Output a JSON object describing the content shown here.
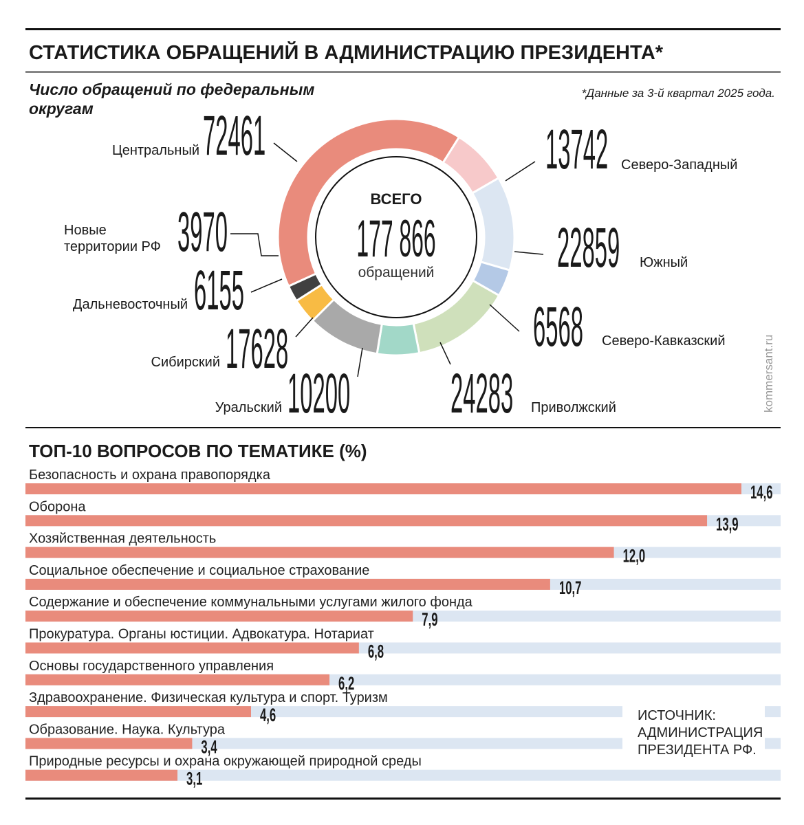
{
  "header": {
    "title": "СТАТИСТИКА ОБРАЩЕНИЙ В АДМИНИСТРАЦИЮ ПРЕЗИДЕНТА*",
    "note": "*Данные за 3-й квартал 2025 года.",
    "watermark": "kommersant.ru"
  },
  "chart_data": [
    {
      "type": "donut",
      "title": "Число обращений по федеральным округам",
      "center_top": "ВСЕГО",
      "center_total": "177 866",
      "center_bottom": "обращений",
      "categories": [
        "Центральный",
        "Северо-Западный",
        "Южный",
        "Северо-Кавказский",
        "Приволжский",
        "Уральский",
        "Сибирский",
        "Дальневосточный",
        "Новые территории РФ"
      ],
      "values": [
        72461,
        13742,
        22859,
        6568,
        24283,
        10200,
        17628,
        6155,
        3970
      ],
      "colors": [
        "#e98b7c",
        "#f7c9ca",
        "#dce6f2",
        "#b4c9e6",
        "#cfe0bb",
        "#a2d8c8",
        "#a9a9a9",
        "#f8bb44",
        "#404040"
      ]
    },
    {
      "type": "bar",
      "title": "ТОП-10 ВОПРОСОВ ПО ТЕМАТИКЕ (%)",
      "categories": [
        "Безопасность и охрана правопорядка",
        "Оборона",
        "Хозяйственная деятельность",
        "Социальное обеспечение и социальное страхование",
        "Содержание и обеспечение коммунальными услугами жилого фонда",
        "Прокуратура. Органы юстиции. Адвокатура. Нотариат",
        "Основы государственного управления",
        "Здравоохранение. Физическая культура и спорт. Туризм",
        "Образование. Наука. Культура",
        "Природные ресурсы и охрана окружающей природной среды"
      ],
      "values": [
        14.6,
        13.9,
        12.0,
        10.7,
        7.9,
        6.8,
        6.2,
        4.6,
        3.4,
        3.1
      ],
      "value_labels": [
        "14,6",
        "13,9",
        "12,0",
        "10,7",
        "7,9",
        "6,8",
        "6,2",
        "4,6",
        "3,4",
        "3,1"
      ],
      "xlim": [
        0,
        15.4
      ],
      "color": "#e98b7c",
      "track_color": "#dce6f2"
    }
  ],
  "source": "ИСТОЧНИК: АДМИНИСТРАЦИЯ ПРЕЗИДЕНТА РФ."
}
